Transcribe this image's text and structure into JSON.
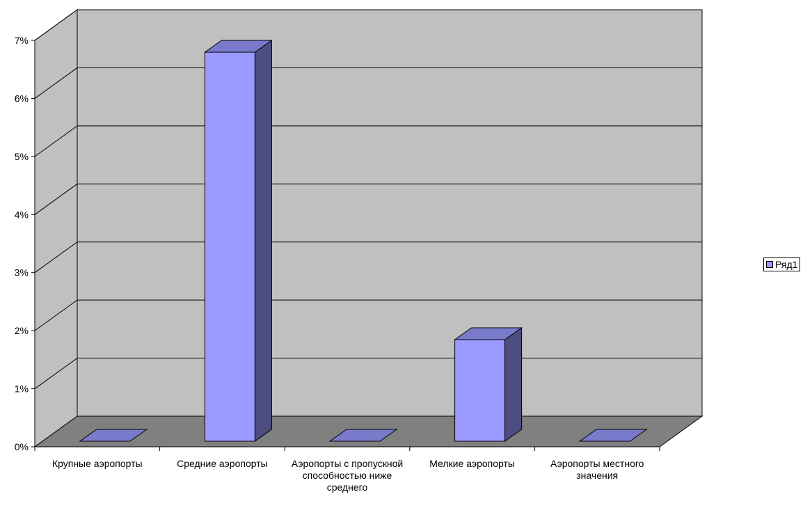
{
  "chart_data": {
    "type": "bar",
    "categories": [
      "Крупные аэропорты",
      "Средние аэропорты",
      "Аэропорты с пропускной способностью ниже среднего",
      "Мелкие аэропорты",
      "Аэропорты местного значения"
    ],
    "series": [
      {
        "name": "Ряд1",
        "values": [
          0.0,
          6.7,
          0.0,
          1.75,
          0.0
        ],
        "color": "#9999ff"
      }
    ],
    "yticks": [
      "0%",
      "1%",
      "2%",
      "3%",
      "4%",
      "5%",
      "6%",
      "7%"
    ],
    "ylim": [
      0,
      7
    ],
    "ylabel": "",
    "xlabel": "",
    "title": "",
    "grid": true,
    "legend_position": "right",
    "is_3d": true,
    "colors": {
      "wall": "#c0c0c0",
      "floor": "#808080",
      "bar_front": "#9999ff",
      "bar_side": "#4d4d80",
      "bar_top": "#7a7acc"
    }
  }
}
